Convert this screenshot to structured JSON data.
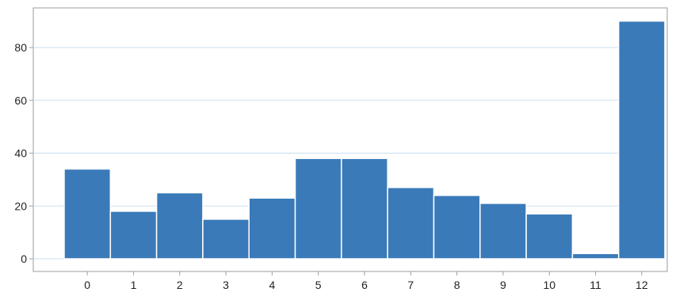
{
  "chart_data": {
    "type": "bar",
    "title": "",
    "xlabel": "",
    "ylabel": "",
    "categories": [
      "0",
      "1",
      "2",
      "3",
      "4",
      "5",
      "6",
      "7",
      "8",
      "9",
      "10",
      "11",
      "12"
    ],
    "values": [
      34,
      18,
      25,
      15,
      23,
      38,
      38,
      27,
      24,
      21,
      17,
      2,
      90
    ],
    "ylim": [
      0,
      95
    ],
    "yticks": [
      0,
      20,
      40,
      60,
      80
    ],
    "grid": "horizontal",
    "legend": "none",
    "colors": {
      "bar": "#3a7ab8",
      "bar_edge": "#ffffff",
      "grid": "#c9dff0",
      "axis": "#9e9e9e"
    }
  }
}
